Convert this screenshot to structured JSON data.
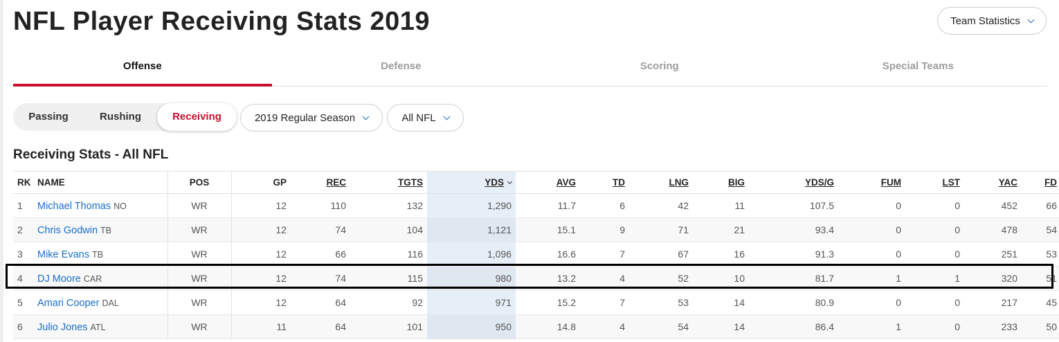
{
  "page_title": "NFL Player Receiving Stats 2019",
  "team_stats_button": "Team Statistics",
  "tabs": [
    {
      "label": "Offense",
      "active": true
    },
    {
      "label": "Defense",
      "active": false
    },
    {
      "label": "Scoring",
      "active": false
    },
    {
      "label": "Special Teams",
      "active": false
    }
  ],
  "segments": [
    {
      "label": "Passing",
      "active": false
    },
    {
      "label": "Rushing",
      "active": false
    },
    {
      "label": "Receiving",
      "active": true
    }
  ],
  "season_dropdown": "2019 Regular Season",
  "league_dropdown": "All NFL",
  "section_title": "Receiving Stats - All NFL",
  "columns": [
    "RK",
    "NAME",
    "POS",
    "GP",
    "REC",
    "TGTS",
    "YDS",
    "AVG",
    "TD",
    "LNG",
    "BIG",
    "YDS/G",
    "FUM",
    "LST",
    "YAC",
    "FD"
  ],
  "rows": [
    {
      "rk": "1",
      "name": "Michael Thomas",
      "team": "NO",
      "pos": "WR",
      "gp": "12",
      "rec": "110",
      "tgts": "132",
      "yds": "1,290",
      "avg": "11.7",
      "td": "6",
      "lng": "42",
      "big": "11",
      "ydsg": "107.5",
      "fum": "0",
      "lst": "0",
      "yac": "452",
      "fd": "66"
    },
    {
      "rk": "2",
      "name": "Chris Godwin",
      "team": "TB",
      "pos": "WR",
      "gp": "12",
      "rec": "74",
      "tgts": "104",
      "yds": "1,121",
      "avg": "15.1",
      "td": "9",
      "lng": "71",
      "big": "21",
      "ydsg": "93.4",
      "fum": "0",
      "lst": "0",
      "yac": "478",
      "fd": "54"
    },
    {
      "rk": "3",
      "name": "Mike Evans",
      "team": "TB",
      "pos": "WR",
      "gp": "12",
      "rec": "66",
      "tgts": "116",
      "yds": "1,096",
      "avg": "16.6",
      "td": "7",
      "lng": "67",
      "big": "16",
      "ydsg": "91.3",
      "fum": "0",
      "lst": "0",
      "yac": "251",
      "fd": "53"
    },
    {
      "rk": "4",
      "name": "DJ Moore",
      "team": "CAR",
      "pos": "WR",
      "gp": "12",
      "rec": "74",
      "tgts": "115",
      "yds": "980",
      "avg": "13.2",
      "td": "4",
      "lng": "52",
      "big": "10",
      "ydsg": "81.7",
      "fum": "1",
      "lst": "1",
      "yac": "320",
      "fd": "51"
    },
    {
      "rk": "5",
      "name": "Amari Cooper",
      "team": "DAL",
      "pos": "WR",
      "gp": "12",
      "rec": "64",
      "tgts": "92",
      "yds": "971",
      "avg": "15.2",
      "td": "7",
      "lng": "53",
      "big": "14",
      "ydsg": "80.9",
      "fum": "0",
      "lst": "0",
      "yac": "217",
      "fd": "45"
    },
    {
      "rk": "6",
      "name": "Julio Jones",
      "team": "ATL",
      "pos": "WR",
      "gp": "11",
      "rec": "64",
      "tgts": "101",
      "yds": "950",
      "avg": "14.8",
      "td": "4",
      "lng": "54",
      "big": "14",
      "ydsg": "86.4",
      "fum": "1",
      "lst": "0",
      "yac": "233",
      "fd": "50"
    }
  ],
  "colors": {
    "accent_red": "#c8102e",
    "link_blue": "#1a6ec8",
    "sorted_col_bg": "#e6eef7"
  }
}
